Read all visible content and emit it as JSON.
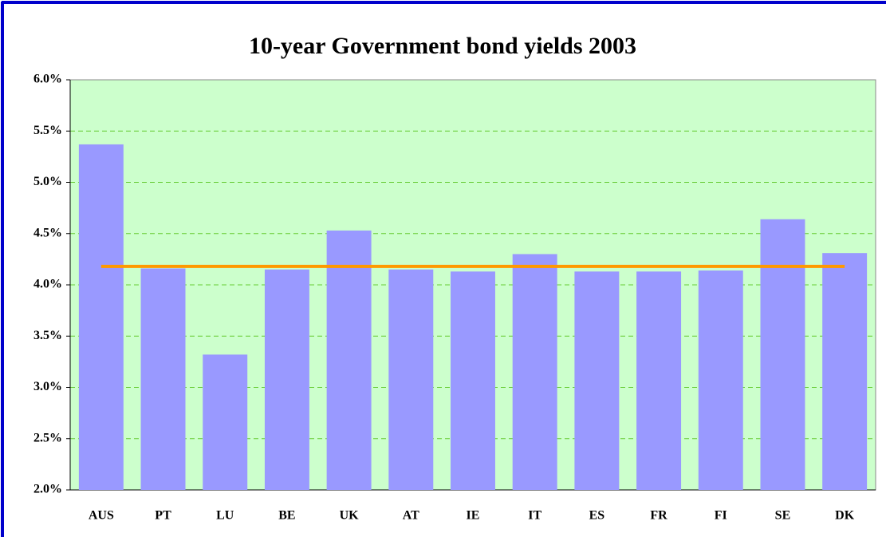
{
  "chart_data": {
    "type": "bar",
    "title": "10-year Government bond yields 2003",
    "categories": [
      "AUS",
      "PT",
      "LU",
      "BE",
      "UK",
      "AT",
      "IE",
      "IT",
      "ES",
      "FR",
      "FI",
      "SE",
      "DK"
    ],
    "series": [
      {
        "type": "bar",
        "color": "#9999ff",
        "values": [
          5.37,
          4.16,
          3.32,
          4.15,
          4.53,
          4.15,
          4.13,
          4.3,
          4.13,
          4.13,
          4.14,
          4.64,
          4.31
        ]
      },
      {
        "type": "line",
        "color": "#ff9900",
        "values": [
          4.18,
          4.18,
          4.18,
          4.18,
          4.18,
          4.18,
          4.18,
          4.18,
          4.18,
          4.18,
          4.18,
          4.18,
          4.18
        ]
      }
    ],
    "ylim": [
      2,
      6
    ],
    "yticks": [
      {
        "value": 2,
        "label": "2.0%"
      },
      {
        "value": 2.5,
        "label": "2.5%"
      },
      {
        "value": 3,
        "label": "3.0%"
      },
      {
        "value": 3.5,
        "label": "3.5%"
      },
      {
        "value": 4,
        "label": "4.0%"
      },
      {
        "value": 4.5,
        "label": "4.5%"
      },
      {
        "value": 5,
        "label": "5.0%"
      },
      {
        "value": 5.5,
        "label": "5.5%"
      },
      {
        "value": 6,
        "label": "6.0%"
      }
    ],
    "grid": true,
    "plot_background": "#ccffcc",
    "grid_color": "#66cc33"
  }
}
